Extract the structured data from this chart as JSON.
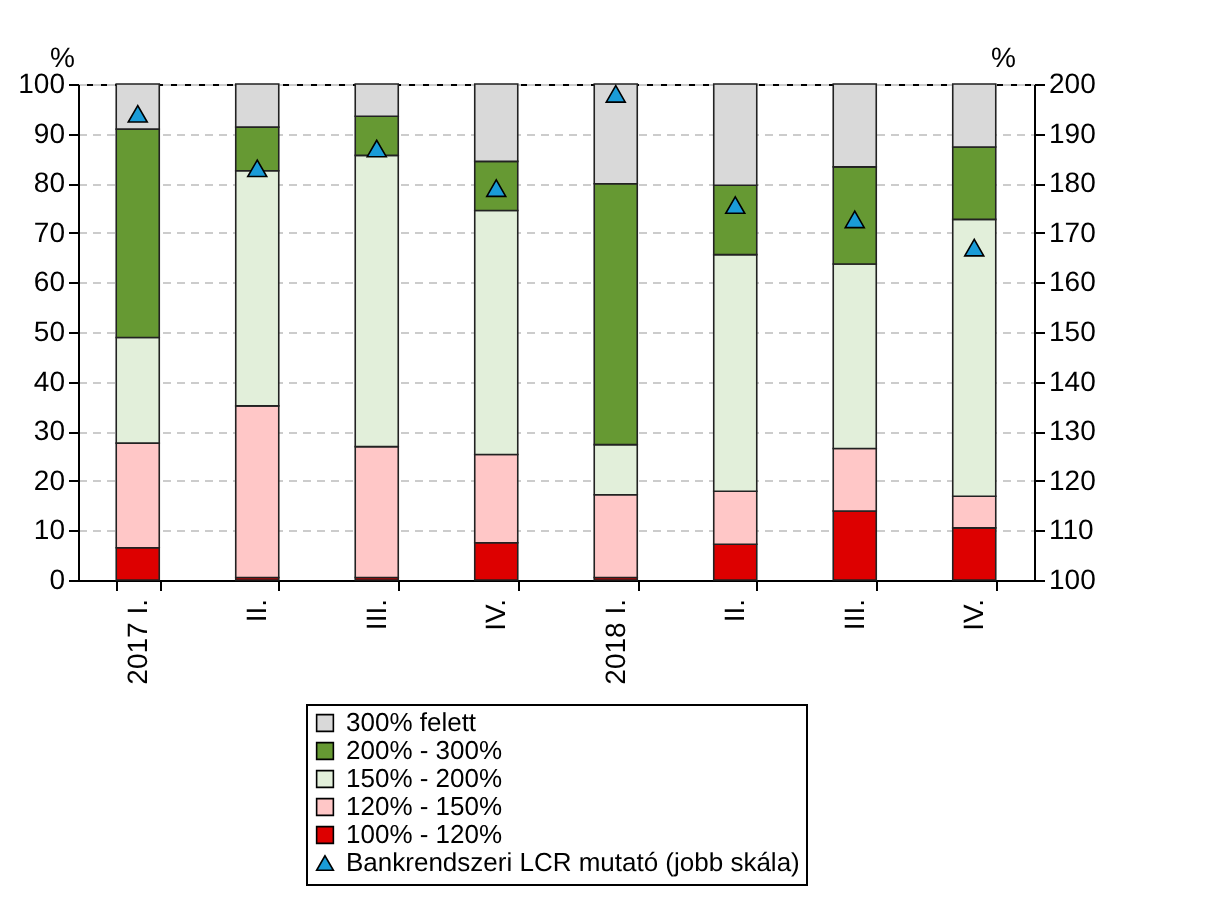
{
  "chart_data": {
    "type": "bar",
    "stacked": true,
    "ylabel": "%",
    "y2label": "%",
    "categories": [
      "2017 I.",
      "II.",
      "III.",
      "IV.",
      "2018 I.",
      "II.",
      "III.",
      "IV."
    ],
    "series": [
      {
        "name": "100% - 120%",
        "color": "#dd0000",
        "values": [
          6.5,
          0.5,
          0.5,
          7.5,
          0.5,
          7.2,
          13.9,
          10.5
        ]
      },
      {
        "name": "120% - 150%",
        "color": "#ffc7c7",
        "values": [
          21.1,
          34.6,
          26.4,
          17.8,
          16.7,
          10.7,
          12.6,
          6.4
        ]
      },
      {
        "name": "150% - 200%",
        "color": "#e2efda",
        "values": [
          21.3,
          47.4,
          58.7,
          49.2,
          10.1,
          47.7,
          37.2,
          55.8
        ]
      },
      {
        "name": "200% - 300%",
        "color": "#669933",
        "values": [
          42,
          8.8,
          7.9,
          9.9,
          52.6,
          14,
          19.6,
          14.6
        ]
      },
      {
        "name": "300% felett",
        "color": "#d9d9d9",
        "values": [
          9.1,
          8.7,
          6.5,
          15.6,
          20.1,
          20.4,
          16.7,
          12.7
        ]
      },
      {
        "name": "Bankrendszeri LCR mutató (jobb skála)",
        "color": "#1a9cd8",
        "type": "scatter",
        "axis": "y2",
        "marker": "triangle",
        "values": [
          194,
          183,
          187,
          179,
          198,
          175.6,
          172.7,
          167
        ]
      }
    ],
    "ylim": [
      0,
      100
    ],
    "yticks": [
      0,
      10,
      20,
      30,
      40,
      50,
      60,
      70,
      80,
      90,
      100
    ],
    "y2lim": [
      100,
      200
    ],
    "y2ticks": [
      100,
      110,
      120,
      130,
      140,
      150,
      160,
      170,
      180,
      190,
      200
    ],
    "grid": "y",
    "legend": "bottom"
  }
}
